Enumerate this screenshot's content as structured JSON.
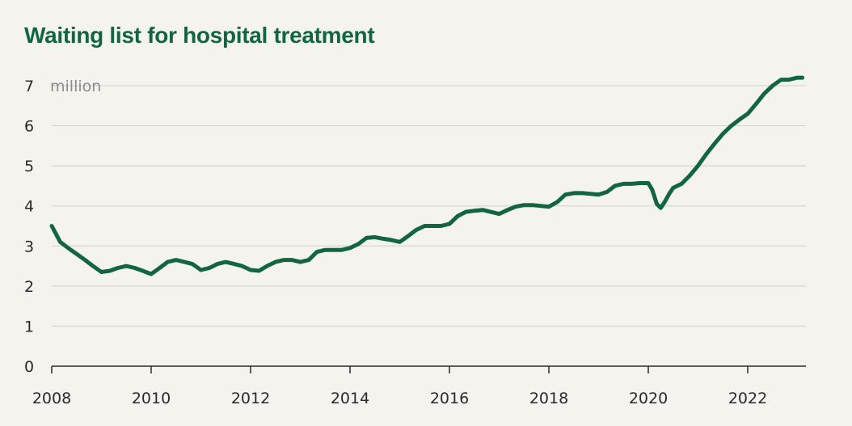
{
  "title": "Waiting list for hospital treatment",
  "chart_data": {
    "type": "line",
    "title": "Waiting list for hospital treatment",
    "unit_label": "million",
    "xlabel": "",
    "ylabel": "",
    "xlim": [
      2008,
      2023.1
    ],
    "ylim": [
      0,
      7
    ],
    "x_ticks": [
      "2008",
      "2010",
      "2012",
      "2014",
      "2016",
      "2018",
      "2020",
      "2022"
    ],
    "y_ticks": [
      "0",
      "1",
      "2",
      "3",
      "4",
      "5",
      "6",
      "7"
    ],
    "grid": true,
    "line_color": "#12663f",
    "series": [
      {
        "x": [
          2008.0,
          2008.17,
          2008.33,
          2008.5,
          2008.67,
          2008.83,
          2009.0,
          2009.17,
          2009.33,
          2009.5,
          2009.67,
          2009.83,
          2010.0,
          2010.17,
          2010.33,
          2010.5,
          2010.67,
          2010.83,
          2011.0,
          2011.17,
          2011.33,
          2011.5,
          2011.67,
          2011.83,
          2012.0,
          2012.17,
          2012.33,
          2012.5,
          2012.67,
          2012.83,
          2013.0,
          2013.17,
          2013.33,
          2013.5,
          2013.67,
          2013.83,
          2014.0,
          2014.17,
          2014.33,
          2014.5,
          2014.67,
          2014.83,
          2015.0,
          2015.17,
          2015.33,
          2015.5,
          2015.67,
          2015.83,
          2016.0,
          2016.17,
          2016.33,
          2016.5,
          2016.67,
          2016.83,
          2017.0,
          2017.17,
          2017.33,
          2017.5,
          2017.67,
          2017.83,
          2018.0,
          2018.17,
          2018.33,
          2018.5,
          2018.67,
          2018.83,
          2019.0,
          2019.17,
          2019.33,
          2019.5,
          2019.67,
          2019.83,
          2020.0,
          2020.08,
          2020.17,
          2020.25,
          2020.33,
          2020.42,
          2020.5,
          2020.67,
          2020.83,
          2021.0,
          2021.17,
          2021.33,
          2021.5,
          2021.67,
          2021.83,
          2022.0,
          2022.17,
          2022.33,
          2022.5,
          2022.67,
          2022.83,
          2023.0,
          2023.1
        ],
        "y": [
          3.5,
          3.1,
          2.95,
          2.8,
          2.65,
          2.5,
          2.35,
          2.38,
          2.45,
          2.5,
          2.45,
          2.38,
          2.3,
          2.45,
          2.6,
          2.65,
          2.6,
          2.55,
          2.4,
          2.45,
          2.55,
          2.6,
          2.55,
          2.5,
          2.4,
          2.38,
          2.5,
          2.6,
          2.65,
          2.65,
          2.6,
          2.65,
          2.85,
          2.9,
          2.9,
          2.9,
          2.95,
          3.05,
          3.2,
          3.22,
          3.18,
          3.15,
          3.1,
          3.25,
          3.4,
          3.5,
          3.5,
          3.5,
          3.55,
          3.75,
          3.85,
          3.88,
          3.9,
          3.85,
          3.8,
          3.9,
          3.98,
          4.02,
          4.02,
          4.0,
          3.98,
          4.1,
          4.28,
          4.32,
          4.32,
          4.3,
          4.28,
          4.35,
          4.5,
          4.55,
          4.55,
          4.57,
          4.57,
          4.4,
          4.05,
          3.95,
          4.1,
          4.3,
          4.45,
          4.55,
          4.75,
          5.0,
          5.3,
          5.55,
          5.8,
          6.0,
          6.15,
          6.3,
          6.55,
          6.8,
          7.0,
          7.15,
          7.15,
          7.2,
          7.2
        ]
      }
    ]
  }
}
